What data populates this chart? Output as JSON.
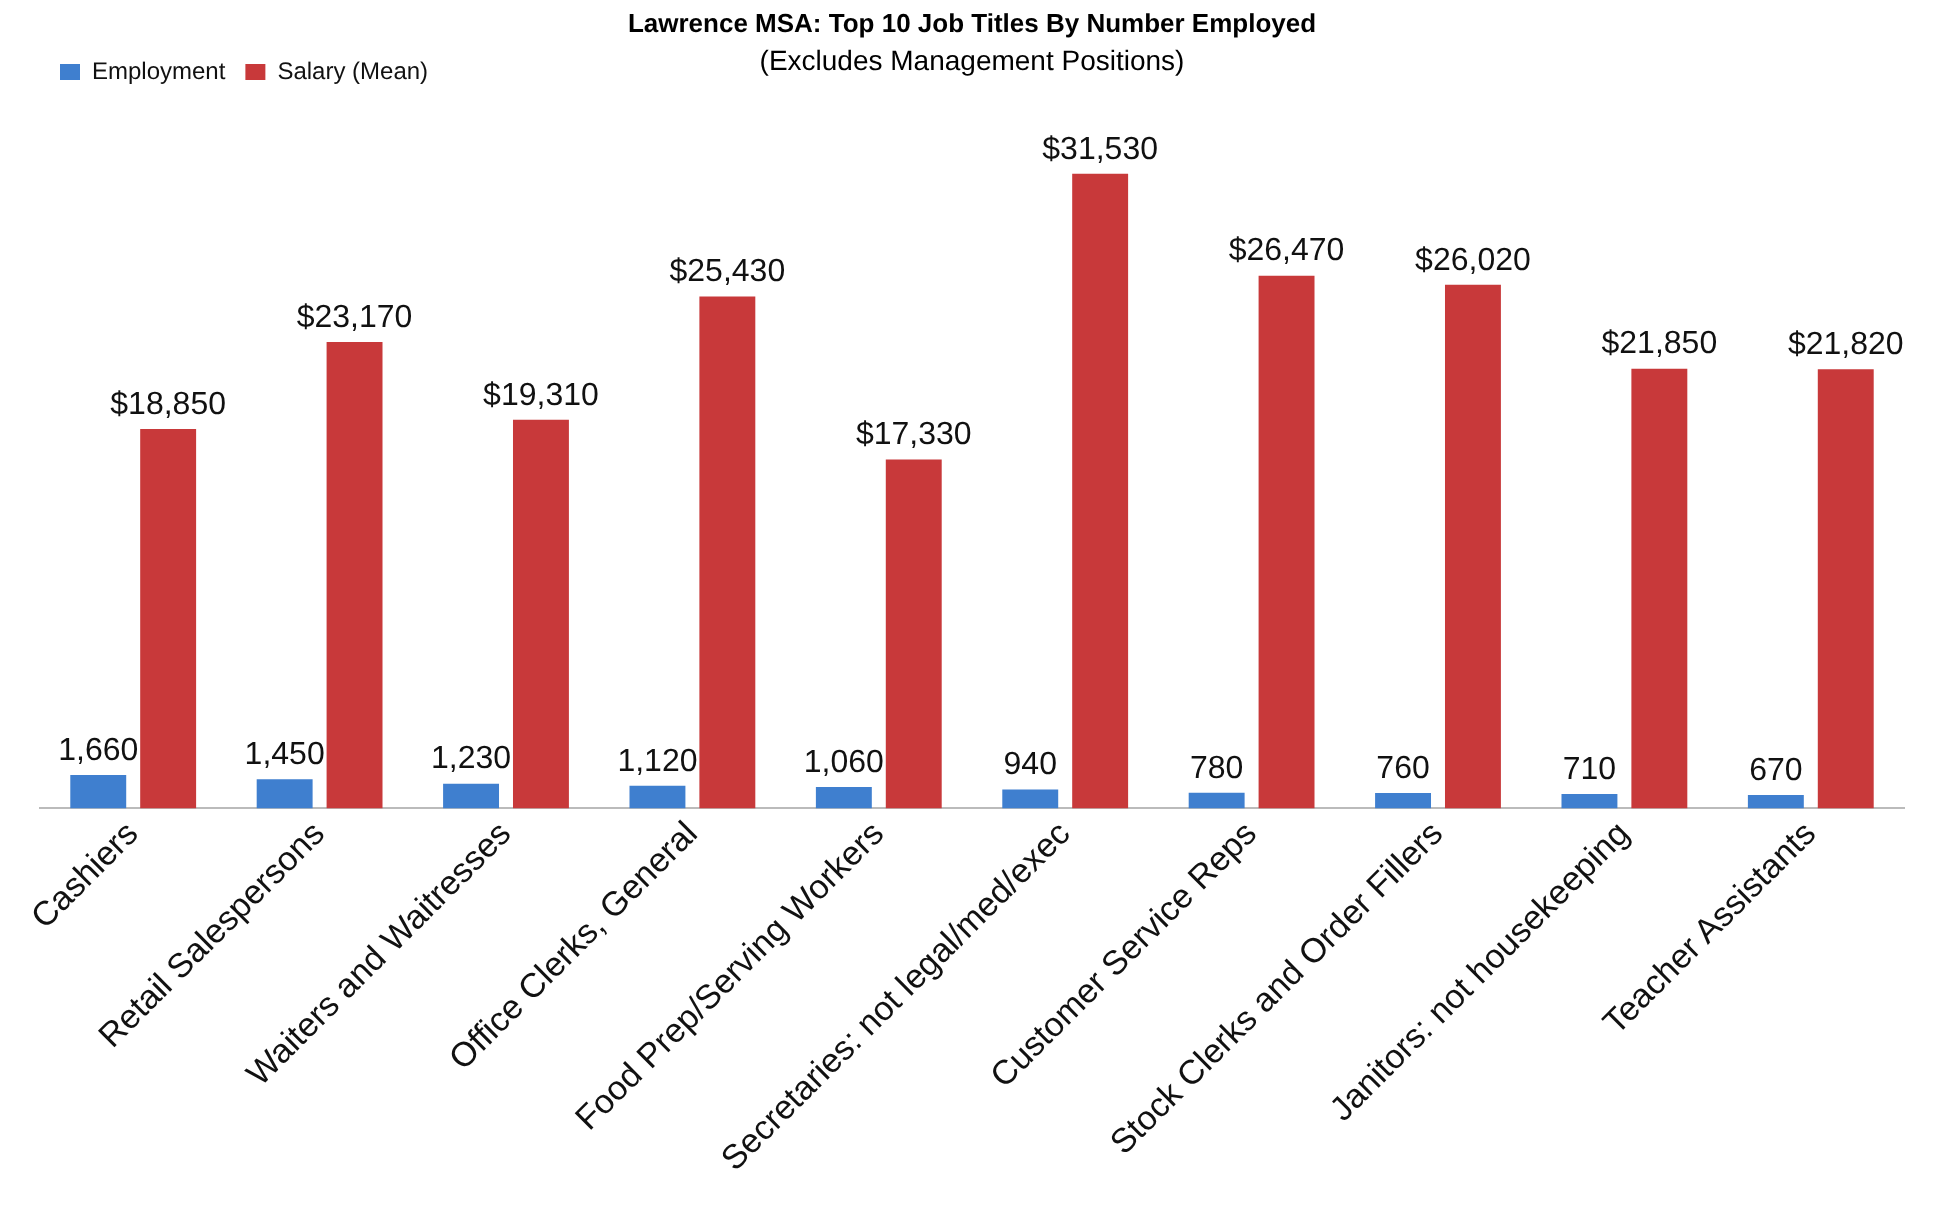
{
  "chart_data": {
    "type": "bar",
    "title": "Lawrence MSA: Top 10 Job Titles By Number Employed",
    "subtitle": "(Excludes Management Positions)",
    "categories": [
      "Cashiers",
      "Retail Salespersons",
      "Waiters and Waitresses",
      "Office Clerks, General",
      "Food Prep/Serving Workers",
      "Secretaries: not legal/med/exec",
      "Customer Service Reps",
      "Stock Clerks and Order Fillers",
      "Janitors: not housekeeping",
      "Teacher Assistants"
    ],
    "series": [
      {
        "name": "Employment",
        "color": "#3f7fcf",
        "values": [
          1660,
          1450,
          1230,
          1120,
          1060,
          940,
          780,
          760,
          710,
          670
        ],
        "value_labels": [
          "1,660",
          "1,450",
          "1,230",
          "1,120",
          "1,060",
          "940",
          "780",
          "760",
          "710",
          "670"
        ]
      },
      {
        "name": "Salary (Mean)",
        "color": "#c8393a",
        "values": [
          18850,
          23170,
          19310,
          25430,
          17330,
          31530,
          26470,
          26020,
          21850,
          21820
        ],
        "value_labels": [
          "$18,850",
          "$23,170",
          "$19,310",
          "$25,430",
          "$17,330",
          "$31,530",
          "$26,470",
          "$26,020",
          "$21,850",
          "$21,820"
        ]
      }
    ],
    "legend": "top left",
    "grid": false
  }
}
